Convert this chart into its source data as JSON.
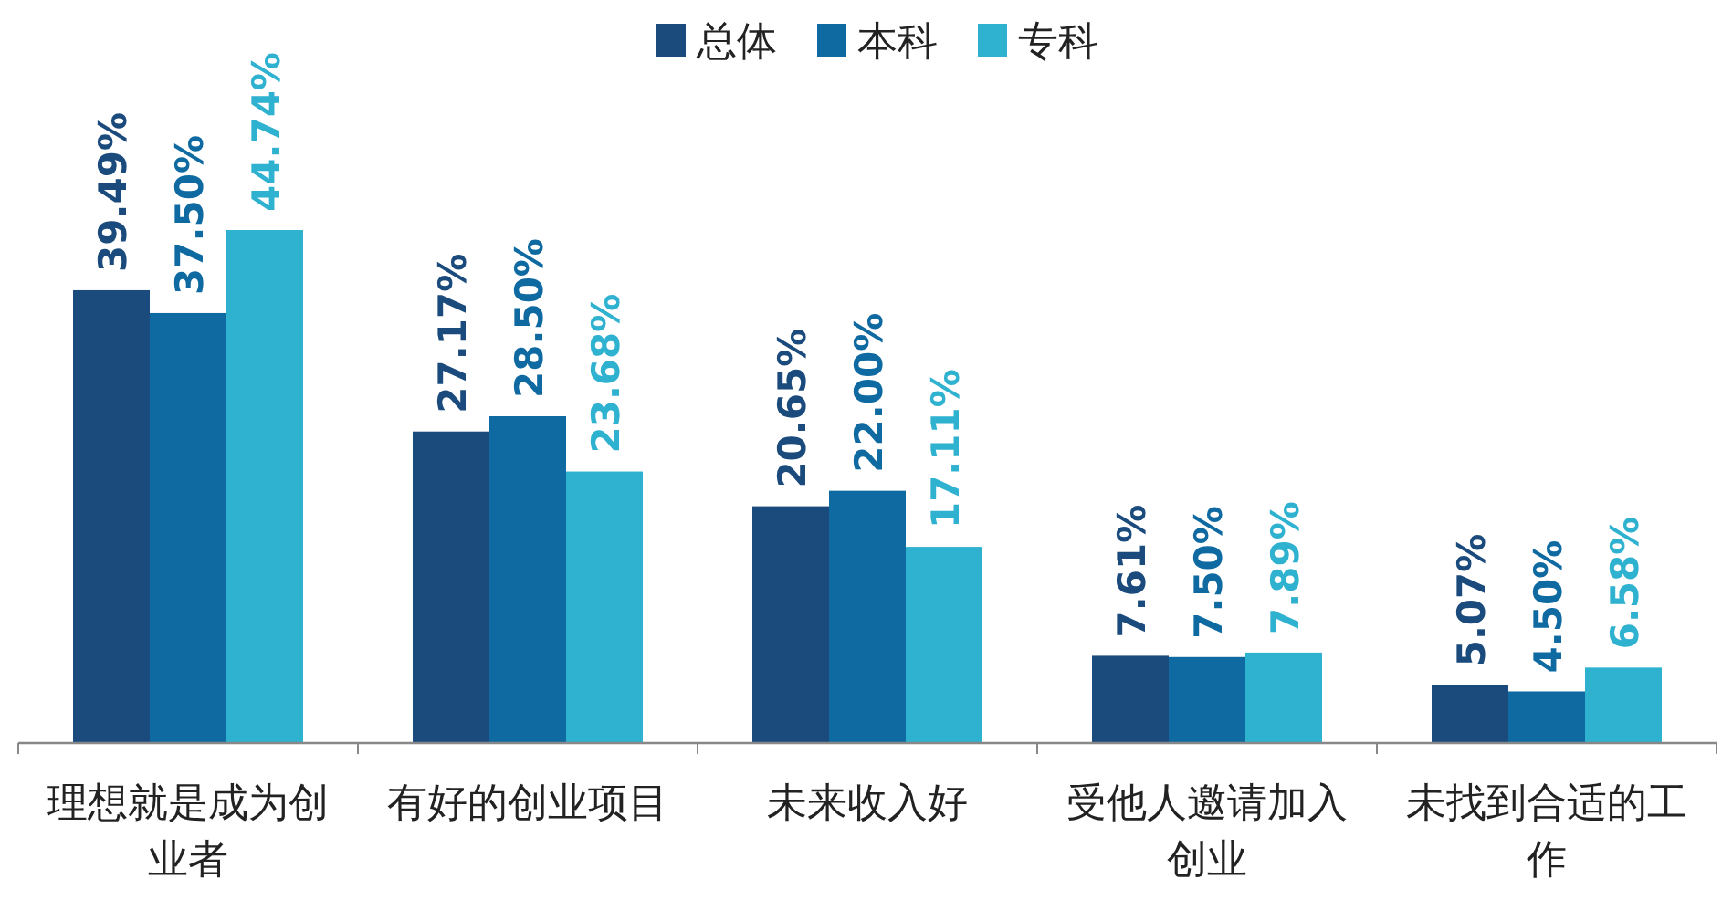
{
  "chart_data": {
    "type": "bar",
    "categories": [
      "理想就是成为创业者",
      "有好的创业项目",
      "未来收入好",
      "受他人邀请加入创业",
      "未找到合适的工作"
    ],
    "series": [
      {
        "name": "总体",
        "color": "#1b4b7c",
        "values": [
          39.49,
          27.17,
          20.65,
          7.61,
          5.07
        ],
        "value_labels": [
          "39.49%",
          "27.17%",
          "20.65%",
          "7.61%",
          "5.07%"
        ]
      },
      {
        "name": "本科",
        "color": "#0f6aa1",
        "values": [
          37.5,
          28.5,
          22.0,
          7.5,
          4.5
        ],
        "value_labels": [
          "37.50%",
          "28.50%",
          "22.00%",
          "7.50%",
          "4.50%"
        ]
      },
      {
        "name": "专科",
        "color": "#2fb1d0",
        "values": [
          44.74,
          23.68,
          17.11,
          7.89,
          6.58
        ],
        "value_labels": [
          "44.74%",
          "23.68%",
          "17.11%",
          "7.89%",
          "6.58%"
        ]
      }
    ],
    "legend": "top",
    "grid": false
  }
}
